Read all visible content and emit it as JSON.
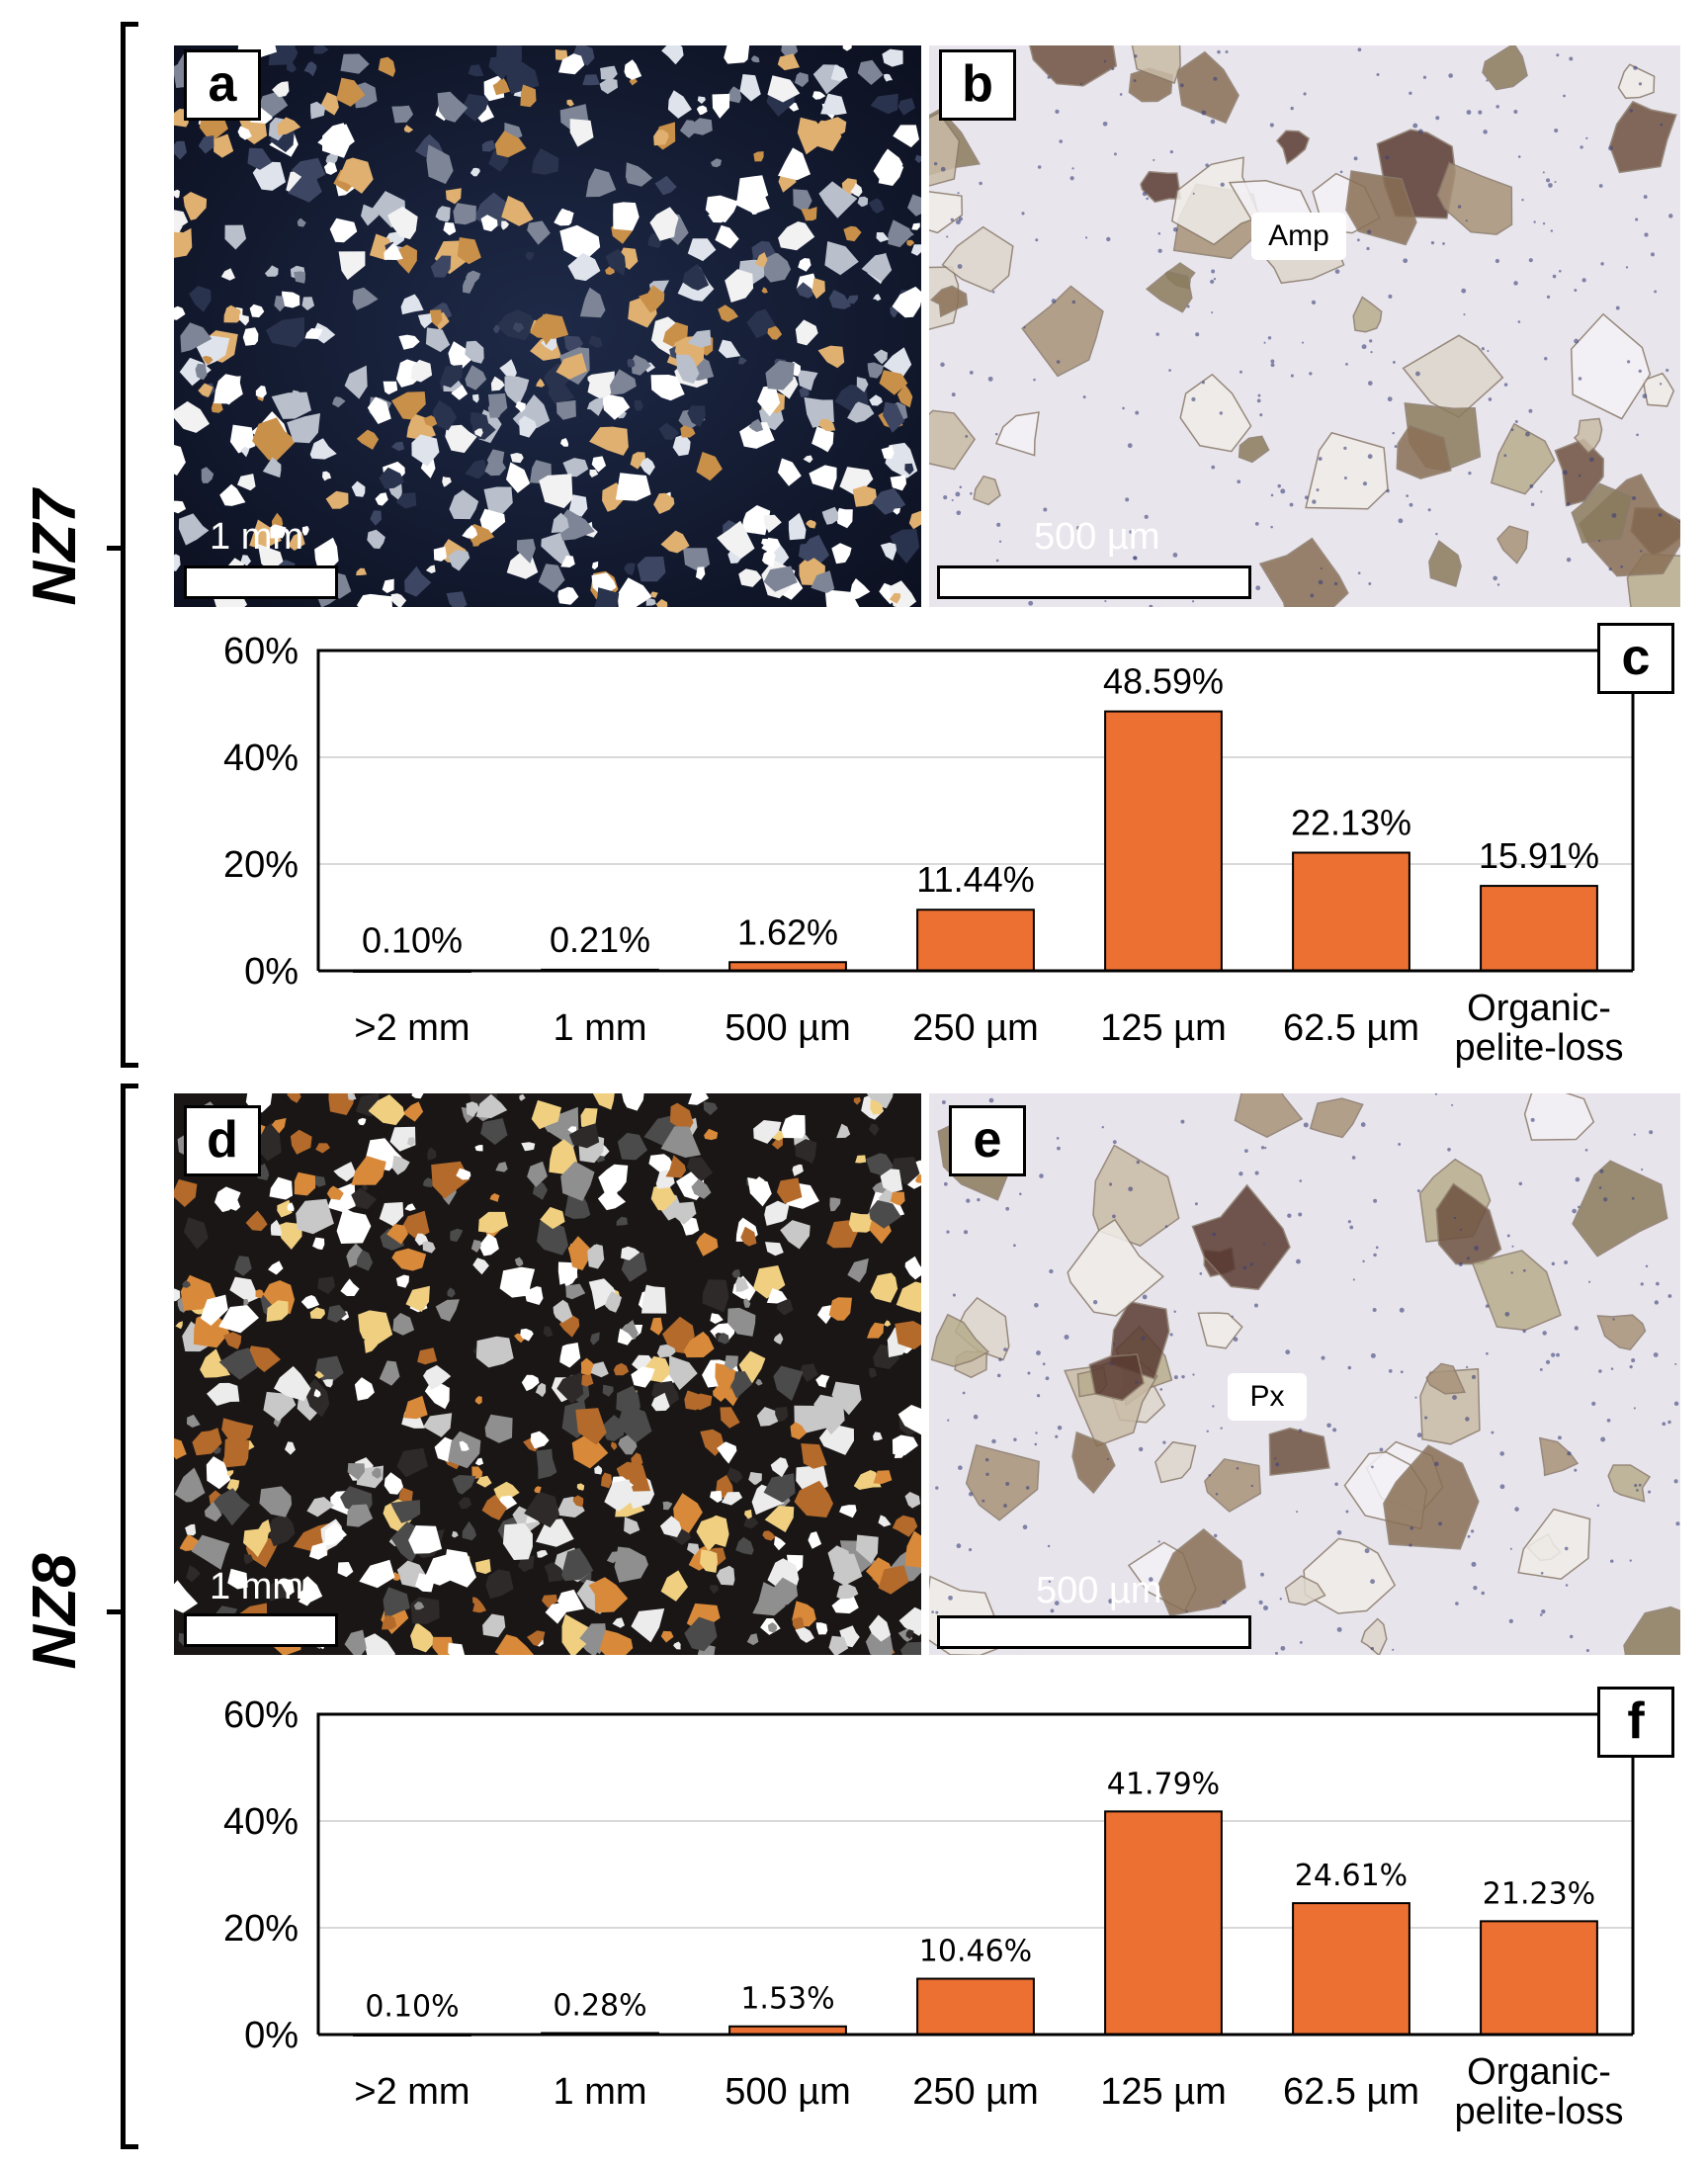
{
  "samples": [
    {
      "name": "NZ7",
      "xpl_panel": {
        "letter": "a",
        "scale_label": "1 mm"
      },
      "ppl_panel": {
        "letter": "b",
        "scale_label": "500 µm",
        "mineral_label": "Amp"
      },
      "chart_letter": "c"
    },
    {
      "name": "NZ8",
      "xpl_panel": {
        "letter": "d",
        "scale_label": "1 mm"
      },
      "ppl_panel": {
        "letter": "e",
        "scale_label": "500 µm",
        "mineral_label": "Px"
      },
      "chart_letter": "f"
    }
  ],
  "colors": {
    "bar": "#ED7033",
    "bar_stroke": "#000000",
    "gridline": "#D9D9D9"
  },
  "chart_data": [
    {
      "type": "bar",
      "panel": "c",
      "categories": [
        ">2 mm",
        "1 mm",
        "500 µm",
        "250 µm",
        "125 µm",
        "62.5 µm",
        "Organic-pelite-loss"
      ],
      "category_lines": [
        [
          ">2 mm"
        ],
        [
          "1 mm"
        ],
        [
          "500 µm"
        ],
        [
          "250 µm"
        ],
        [
          "125 µm"
        ],
        [
          "62.5 µm"
        ],
        [
          "Organic-",
          "pelite-loss"
        ]
      ],
      "values": [
        0.1,
        0.21,
        1.62,
        11.44,
        48.59,
        22.13,
        15.91
      ],
      "data_labels": [
        "0.10%",
        "0.21%",
        "1.62%",
        "11.44%",
        "48.59%",
        "22.13%",
        "15.91%"
      ],
      "y_ticks": [
        "0%",
        "20%",
        "40%",
        "60%"
      ],
      "ylim": [
        0,
        60
      ],
      "grid": true,
      "legend": "none"
    },
    {
      "type": "bar",
      "panel": "f",
      "categories": [
        ">2 mm",
        "1 mm",
        "500 µm",
        "250 µm",
        "125 µm",
        "62.5 µm",
        "Organic-pelite-loss"
      ],
      "category_lines": [
        [
          ">2 mm"
        ],
        [
          "1 mm"
        ],
        [
          "500 µm"
        ],
        [
          "250 µm"
        ],
        [
          "125 µm"
        ],
        [
          "62.5 µm"
        ],
        [
          "Organic-",
          "pelite-loss"
        ]
      ],
      "values": [
        0.1,
        0.28,
        1.53,
        10.46,
        41.79,
        24.61,
        21.23
      ],
      "data_labels": [
        "0.10%",
        "0.28%",
        "1.53%",
        "10.46%",
        "41.79%",
        "24.61%",
        "21.23%"
      ],
      "y_ticks": [
        "0%",
        "20%",
        "40%",
        "60%"
      ],
      "ylim": [
        0,
        60
      ],
      "grid": true,
      "legend": "none"
    }
  ]
}
